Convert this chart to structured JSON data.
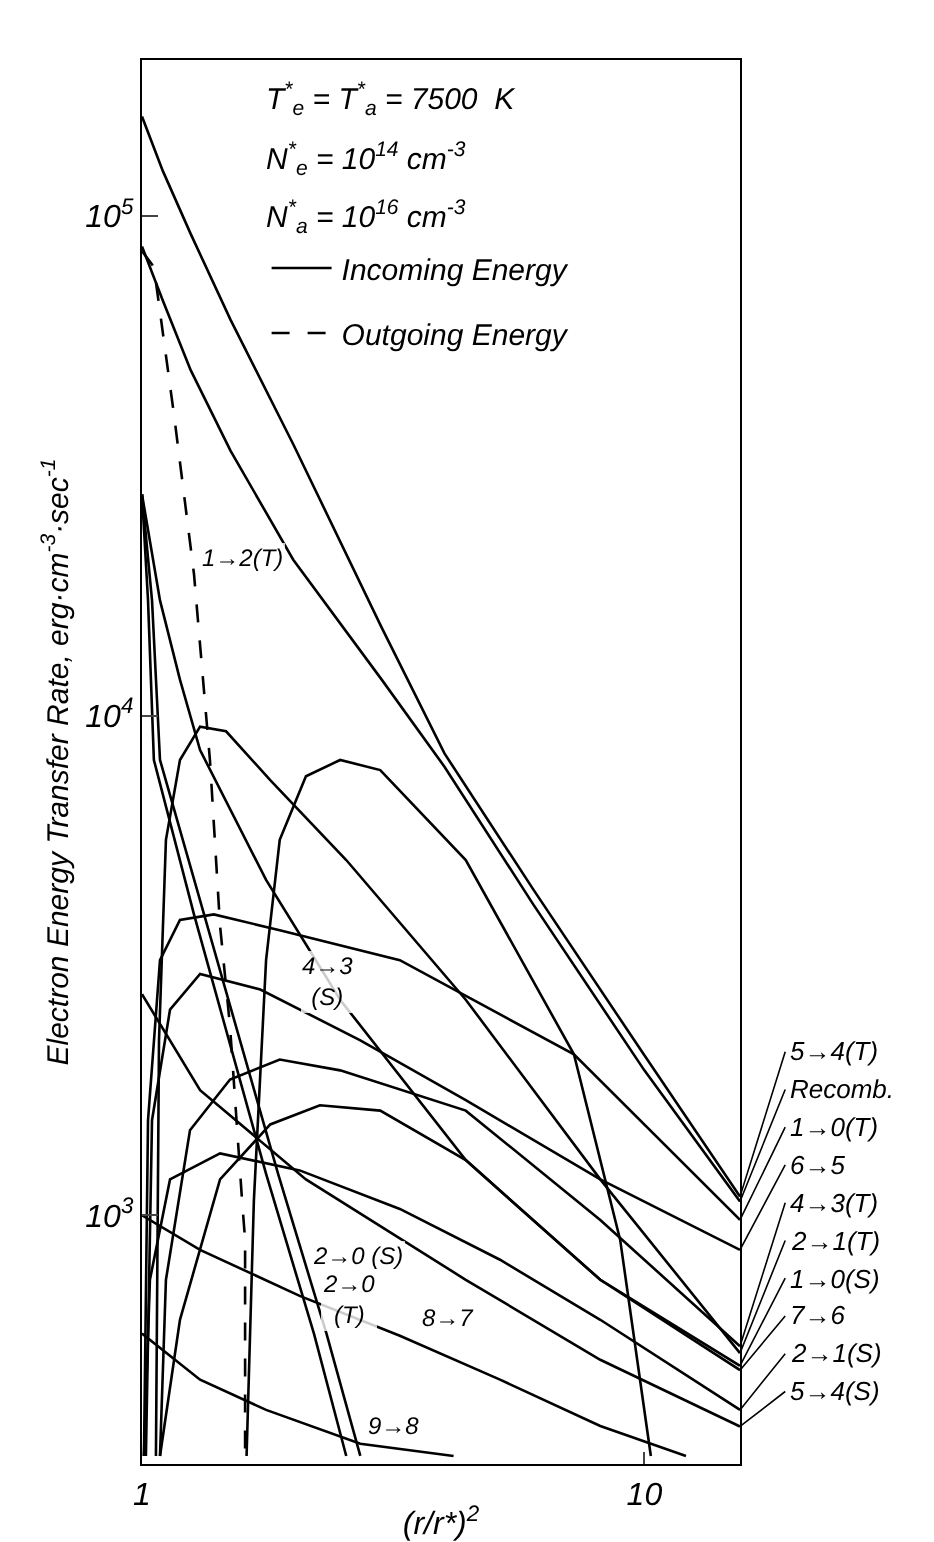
{
  "chart_data": {
    "type": "line",
    "xlabel": "(r/r*)$^{2}$",
    "ylabel": "Electron Energy Transfer Rate, erg·cm$^{-3}$·sec$^{-1}$",
    "log": "xy",
    "grid": false,
    "legend": "top",
    "marker": "none",
    "xlim": [
      1,
      15.5
    ],
    "xticks": [
      1,
      10
    ],
    "ylim": [
      318,
      205000
    ],
    "yticks": [
      {
        "value": 1000,
        "label": "10$^{3}$"
      },
      {
        "value": 10000,
        "label": "10$^{4}$"
      },
      {
        "value": 100000,
        "label": "10$^{5}$"
      }
    ],
    "series": [
      {
        "name": "Incoming Energy",
        "color": "#000000",
        "line_style": "solid",
        "x": [
          1,
          1.1,
          1.25,
          1.5,
          2,
          3,
          4,
          6,
          10,
          15.5
        ],
        "values": [
          158000,
          123000,
          92000,
          62000,
          34900,
          15000,
          8400,
          4500,
          2090,
          1090
        ]
      },
      {
        "color": "#000000",
        "line_style": "solid",
        "x": [
          1,
          1.1,
          1.25,
          1.5,
          2,
          3,
          4,
          6,
          10,
          15.5
        ],
        "values": [
          86800,
          67700,
          49100,
          33900,
          20500,
          11800,
          7900,
          4200,
          1950,
          1066
        ]
      },
      {
        "name": "Outgoing Energy",
        "color": "#000000",
        "line_style": "dashed",
        "x": [
          1,
          1.056,
          1.158,
          1.269,
          1.366,
          1.43,
          1.497,
          1.582,
          1.604,
          1.604
        ],
        "values": [
          85000,
          79000,
          40000,
          19200,
          8100,
          3800,
          2390,
          1070,
          893,
          330
        ]
      },
      {
        "color": "#000000",
        "line_style": "solid",
        "x": [
          1.615,
          1.67,
          1.766,
          1.88,
          2.12,
          2.48,
          2.98,
          4.41,
          7.24,
          8.95,
          10.3
        ],
        "values": [
          330,
          1070,
          3240,
          5640,
          7560,
          8150,
          7780,
          5140,
          2100,
          893,
          330
        ]
      },
      {
        "color": "#000000",
        "line_style": "solid",
        "x": [
          1.066,
          1.081,
          1.116,
          1.19,
          1.305,
          1.47,
          1.8,
          2.55,
          4.41,
          8.17,
          15.5
        ],
        "values": [
          330,
          2240,
          5640,
          8150,
          9500,
          9300,
          7430,
          5140,
          2700,
          1180,
          530
        ]
      },
      {
        "color": "#000000",
        "line_style": "solid",
        "x": [
          1.009,
          1.028,
          1.086,
          1.19,
          1.39,
          1.88,
          3.26,
          7.24,
          15.5
        ],
        "values": [
          330,
          1550,
          3240,
          3900,
          4000,
          3720,
          3240,
          2100,
          979
        ]
      },
      {
        "color": "#000000",
        "line_style": "solid",
        "x": [
          1.018,
          1.047,
          1.137,
          1.305,
          1.72,
          2.72,
          4.41,
          8.17,
          15.5
        ],
        "values": [
          330,
          1550,
          2580,
          3040,
          2830,
          2240,
          1700,
          1180,
          853
        ]
      },
      {
        "color": "#000000",
        "line_style": "solid",
        "x": [
          1.086,
          1.116,
          1.246,
          1.497,
          1.88,
          2.48,
          4.41,
          8.17,
          15.5
        ],
        "values": [
          330,
          743,
          1480,
          1870,
          2050,
          1950,
          1620,
          979,
          547
        ]
      },
      {
        "color": "#000000",
        "line_style": "solid",
        "x": [
          1.086,
          1.19,
          1.43,
          1.8,
          2.26,
          2.98,
          4.41,
          8.17,
          15.5
        ],
        "values": [
          330,
          618,
          1180,
          1520,
          1660,
          1620,
          1290,
          743,
          500
        ]
      },
      {
        "color": "#000000",
        "line_style": "solid",
        "x": [
          1.009,
          1.037,
          1.137,
          1.43,
          2.06,
          3.26,
          5.16,
          8.17,
          15.5
        ],
        "values": [
          330,
          743,
          1180,
          1330,
          1230,
          1030,
          815,
          618,
          408
        ]
      },
      {
        "color": "#000000",
        "line_style": "solid",
        "x": [
          1,
          1.305,
          2.12,
          4.41,
          8.17,
          15.5
        ],
        "values": [
          2770,
          1780,
          1180,
          743,
          514,
          378
        ]
      },
      {
        "color": "#000000",
        "line_style": "solid",
        "x": [
          1,
          1.305,
          2.06,
          3.26,
          5.16,
          8.17,
          12.1
        ],
        "values": [
          1000,
          853,
          690,
          574,
          469,
          379,
          330
        ]
      },
      {
        "color": "#000000",
        "line_style": "solid",
        "x": [
          1,
          1.305,
          1.766,
          2.72,
          4.17
        ],
        "values": [
          580,
          469,
          408,
          349,
          330
        ]
      },
      {
        "color": "#000000",
        "line_style": "solid",
        "x": [
          1,
          1.086,
          1.19,
          1.305,
          1.766,
          2.48,
          4.41,
          8.17,
          15.5
        ],
        "values": [
          27700,
          17000,
          11800,
          8530,
          4690,
          2700,
          1290,
          743,
          490
        ]
      },
      {
        "color": "#000000",
        "line_style": "solid",
        "x": [
          1,
          1.028,
          1.056,
          1.269,
          1.766,
          2.2,
          2.55
        ],
        "values": [
          27700,
          17000,
          8150,
          4000,
          1210,
          579,
          330
        ]
      },
      {
        "color": "#000000",
        "line_style": "solid",
        "x": [
          1,
          1.047,
          1.086,
          1.329,
          1.866,
          2.33,
          2.72
        ],
        "values": [
          27700,
          17000,
          8150,
          4000,
          1210,
          579,
          330
        ]
      }
    ],
    "annotations": [
      "T$^{*}$$_{e}$ = T$^{*}$$_{a}$ = 7500  K",
      "N$^{*}$$_{e}$ = 10$^{14}$ cm$^{-3}$",
      "N$^{*}$$_{a}$ = 10$^{16}$ cm$^{-3}$",
      {
        "text": "1→2(T)",
        "x": 1.27,
        "y": 19000
      },
      {
        "text": "4→3\n(S)",
        "x": 2.0,
        "y": 2500
      },
      {
        "text": "2→0 (S)",
        "x": 2.1,
        "y": 760
      },
      {
        "text": "8→7",
        "x": 3.48,
        "y": 574
      },
      {
        "text": "2→0\n(T)",
        "x": 2.2,
        "y": 579
      },
      {
        "text": "9→8",
        "x": 2.72,
        "y": 349
      },
      {
        "text": "5→4(T)",
        "x": 15.5,
        "y": 1090
      },
      {
        "text": "Recomb.",
        "x": 15.5,
        "y": 1066
      },
      {
        "text": "1→0(T)",
        "x": 15.5,
        "y": 979
      },
      {
        "text": "6→5",
        "x": 15.5,
        "y": 853
      },
      {
        "text": "4→3(T)",
        "x": 15.5,
        "y": 547
      },
      {
        "text": "2→1(T)",
        "x": 15.5,
        "y": 530
      },
      {
        "text": "1→0(S)",
        "x": 15.5,
        "y": 500
      },
      {
        "text": "7→6",
        "x": 15.5,
        "y": 490
      },
      {
        "text": "2→1(S)",
        "x": 15.5,
        "y": 408
      },
      {
        "text": "5→4(S)",
        "x": 15.5,
        "y": 378
      }
    ]
  }
}
